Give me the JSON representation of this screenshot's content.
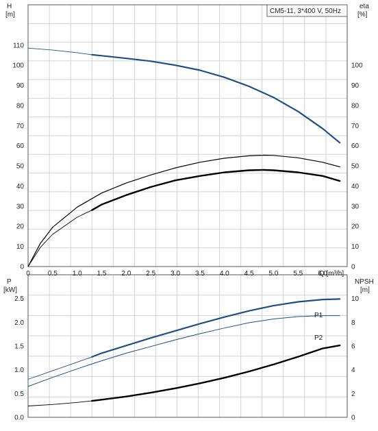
{
  "chart_data": [
    {
      "type": "line",
      "panel": "top",
      "title": "CM5-11, 3*400 V, 50Hz",
      "xlabel": "Q [m³/h]",
      "xlim": [
        0,
        6.5
      ],
      "x_ticks": [
        "0",
        "0.5",
        "1.0",
        "1.5",
        "2.0",
        "2.5",
        "3.0",
        "3.5",
        "4.0",
        "4.5",
        "5.0",
        "5.5",
        "6.0"
      ],
      "y_left": {
        "label": "H",
        "unit": "[m]",
        "lim": [
          0,
          130
        ],
        "ticks": [
          "0",
          "10",
          "20",
          "30",
          "40",
          "50",
          "60",
          "70",
          "80",
          "90",
          "100",
          "110"
        ]
      },
      "y_right": {
        "label": "eta",
        "unit": "[%]",
        "lim": [
          0,
          130
        ],
        "ticks": [
          "0",
          "10",
          "20",
          "30",
          "40",
          "50",
          "60",
          "70",
          "80",
          "90",
          "100"
        ]
      },
      "grid": true,
      "series": [
        {
          "key": "H",
          "axis": "left",
          "color": "#1f4e86",
          "width": 2.2,
          "thin_until": 1.3,
          "x": [
            0,
            0.5,
            1.0,
            1.3,
            1.5,
            2.0,
            2.5,
            3.0,
            3.5,
            4.0,
            4.5,
            5.0,
            5.5,
            6.0,
            6.35
          ],
          "y": [
            108.5,
            107.5,
            106.2,
            105.2,
            104.7,
            103.4,
            102.0,
            100.0,
            97.5,
            94.0,
            89.5,
            84.0,
            77.0,
            68.5,
            61.5
          ]
        },
        {
          "key": "eta_outer",
          "axis": "right",
          "color": "#000000",
          "width": 1.2,
          "x": [
            0,
            0.25,
            0.5,
            1.0,
            1.5,
            2.0,
            2.5,
            3.0,
            3.5,
            4.0,
            4.5,
            4.8,
            5.0,
            5.5,
            6.0,
            6.35
          ],
          "y": [
            0,
            11.5,
            19.5,
            29.5,
            36.5,
            41.5,
            45.5,
            49.0,
            51.8,
            53.8,
            55.0,
            55.3,
            55.2,
            54.0,
            51.8,
            49.5
          ]
        },
        {
          "key": "eta_inner",
          "axis": "right",
          "color": "#000000",
          "width": 2.4,
          "thin_until": 1.3,
          "x": [
            0,
            0.25,
            0.5,
            1.0,
            1.3,
            1.5,
            2.0,
            2.5,
            3.0,
            3.5,
            4.0,
            4.5,
            4.8,
            5.0,
            5.5,
            6.0,
            6.35
          ],
          "y": [
            0,
            9.5,
            16.0,
            24.5,
            28.0,
            30.8,
            35.5,
            39.5,
            42.8,
            45.0,
            46.8,
            47.8,
            48.0,
            47.8,
            46.8,
            45.0,
            42.5
          ]
        }
      ]
    },
    {
      "type": "line",
      "panel": "bottom",
      "xlim": [
        0,
        6.5
      ],
      "y_left": {
        "label": "P",
        "unit": "[kW]",
        "lim": [
          0,
          3.0
        ],
        "ticks": [
          "0.0",
          "0.5",
          "1.0",
          "1.5",
          "2.0",
          "2.5"
        ]
      },
      "y_right": {
        "label": "NPSH",
        "unit": "[m]",
        "lim": [
          0,
          12
        ],
        "ticks": [
          "0",
          "2",
          "4",
          "6",
          "8",
          "10"
        ]
      },
      "grid": true,
      "series": [
        {
          "key": "P1",
          "name": "P1",
          "axis": "left",
          "color": "#1f4e86",
          "width": 2.2,
          "thin_until": 1.3,
          "x": [
            0,
            0.5,
            1.0,
            1.3,
            1.5,
            2.0,
            2.5,
            3.0,
            3.5,
            4.0,
            4.5,
            5.0,
            5.5,
            6.0,
            6.35
          ],
          "y": [
            0.8,
            0.98,
            1.16,
            1.27,
            1.35,
            1.51,
            1.67,
            1.82,
            1.97,
            2.11,
            2.24,
            2.35,
            2.43,
            2.48,
            2.49
          ]
        },
        {
          "key": "P2",
          "name": "P2",
          "axis": "left",
          "color": "#1f4e86",
          "width": 1.0,
          "x": [
            0,
            0.5,
            1.0,
            1.5,
            2.0,
            2.5,
            3.0,
            3.5,
            4.0,
            4.5,
            5.0,
            5.5,
            6.0,
            6.35
          ],
          "y": [
            0.65,
            0.84,
            1.02,
            1.19,
            1.35,
            1.49,
            1.63,
            1.76,
            1.88,
            1.99,
            2.07,
            2.12,
            2.14,
            2.14
          ]
        },
        {
          "key": "NPSH",
          "axis": "right",
          "color": "#000000",
          "width": 2.4,
          "thin_until": 1.3,
          "x": [
            0,
            0.5,
            1.0,
            1.3,
            1.5,
            2.0,
            2.5,
            3.0,
            3.5,
            4.0,
            4.5,
            5.0,
            5.5,
            6.0,
            6.35
          ],
          "y": [
            0.95,
            1.08,
            1.25,
            1.38,
            1.48,
            1.75,
            2.07,
            2.44,
            2.86,
            3.33,
            3.86,
            4.45,
            5.1,
            5.8,
            6.05
          ]
        }
      ]
    }
  ]
}
